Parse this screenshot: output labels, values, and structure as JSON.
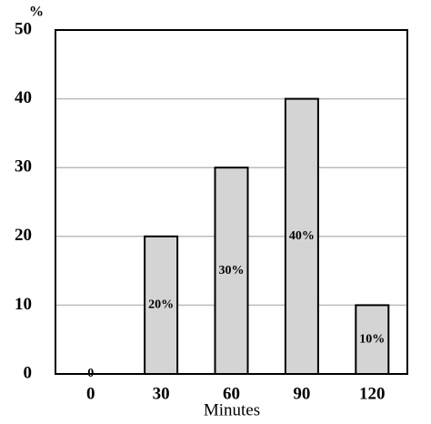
{
  "chart_data": {
    "type": "bar",
    "y_label": "%",
    "x_label": "Minutes",
    "categories": [
      "0",
      "30",
      "60",
      "90",
      "120"
    ],
    "values": [
      0,
      20,
      30,
      40,
      10
    ],
    "value_labels": [
      "0",
      "20%",
      "30%",
      "40%",
      "10%"
    ],
    "color": "#d4d4d4",
    "ylim": [
      0,
      50
    ],
    "yticks": [
      0,
      10,
      20,
      30,
      40,
      50
    ],
    "grid": true
  }
}
